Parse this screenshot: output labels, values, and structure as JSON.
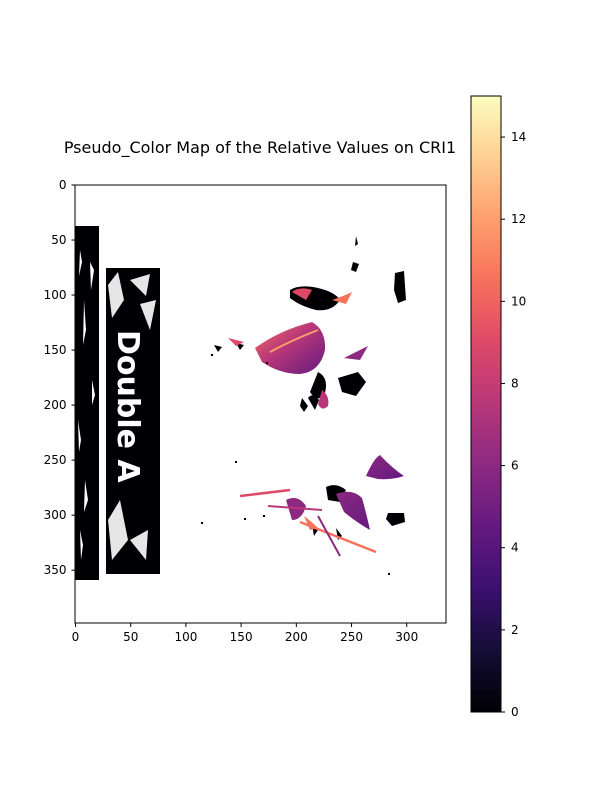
{
  "chart_data": {
    "type": "heatmap",
    "title": "Pseudo_Color Map of the Relative Values on CRI1",
    "xlabel": "",
    "ylabel": "",
    "xlim": [
      0,
      336
    ],
    "ylim": [
      398,
      0
    ],
    "x_ticks": [
      "0",
      "50",
      "100",
      "150",
      "200",
      "250",
      "300"
    ],
    "y_ticks": [
      "0",
      "50",
      "100",
      "150",
      "200",
      "250",
      "300",
      "350"
    ],
    "colormap": "magma",
    "colorbar": {
      "min": 0,
      "max": 15,
      "ticks": [
        "0",
        "2",
        "4",
        "6",
        "8",
        "10",
        "12",
        "14"
      ]
    },
    "background": "masked (white)",
    "regions": [
      {
        "label": "packaging-left-strip",
        "x": [
          0,
          22
        ],
        "y": [
          38,
          358
        ],
        "value": 0
      },
      {
        "label": "packaging-box",
        "x": [
          25,
          76
        ],
        "y": [
          76,
          352
        ],
        "value": 0,
        "text": "Double A"
      },
      {
        "label": "upper-leaf",
        "x": [
          165,
          235
        ],
        "y": [
          120,
          175
        ],
        "value": 5.5
      },
      {
        "label": "lower-leaf-right",
        "x": [
          235,
          292
        ],
        "y": [
          245,
          265
        ],
        "value": 4.5
      },
      {
        "label": "lower-leaf-center",
        "x": [
          240,
          275
        ],
        "y": [
          285,
          320
        ],
        "value": 4
      },
      {
        "label": "upper-dark-clusters",
        "x": [
          190,
          305
        ],
        "y": [
          80,
          200
        ],
        "value": 0.3
      }
    ]
  }
}
